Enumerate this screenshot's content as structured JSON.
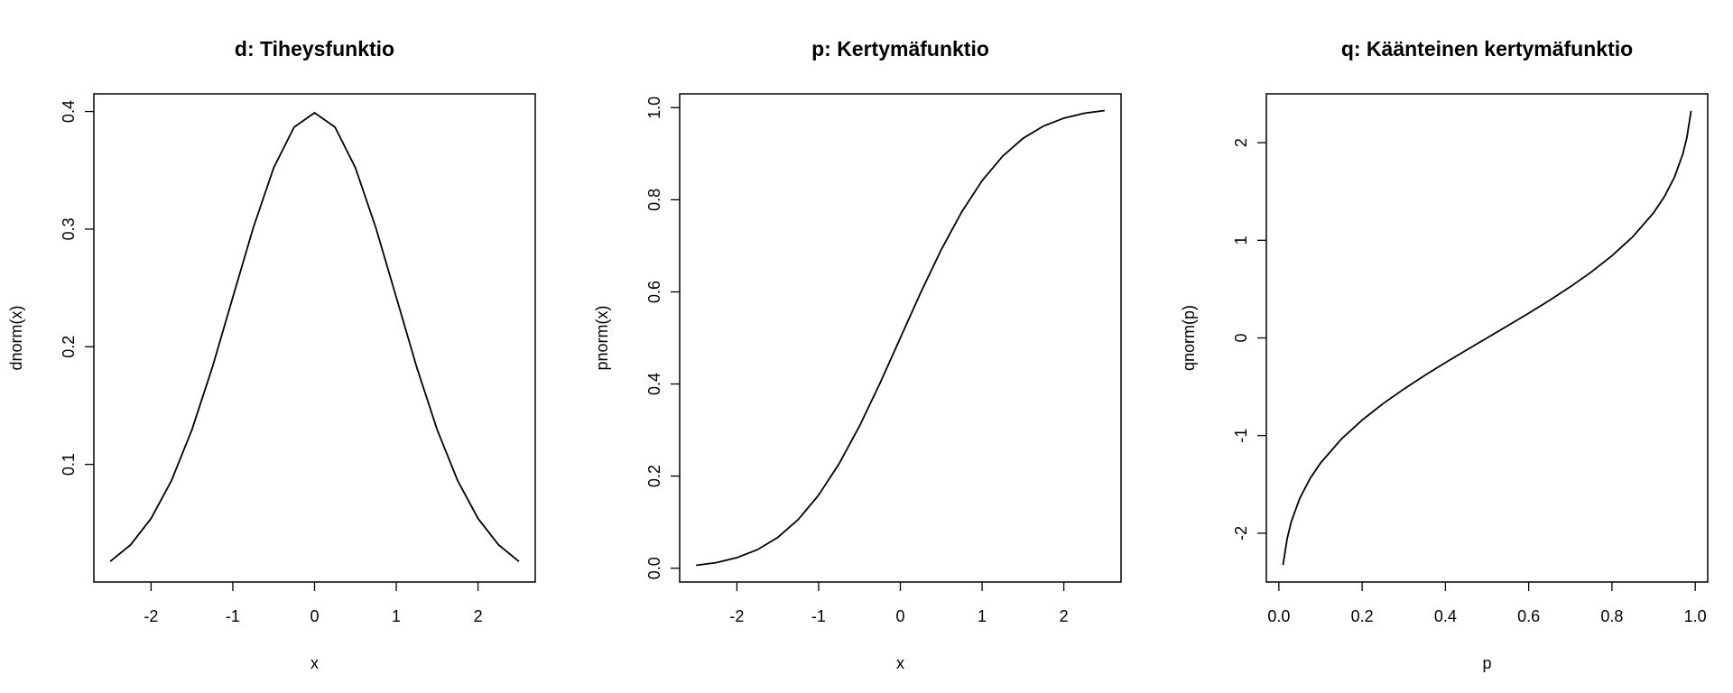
{
  "chart_data": [
    {
      "type": "line",
      "title": "d: Tiheysfunktio",
      "xlabel": "x",
      "ylabel": "dnorm(x)",
      "xlim": [
        -2.7,
        2.7
      ],
      "ylim": [
        0.0,
        0.415
      ],
      "xticks": [
        -2,
        -1,
        0,
        1,
        2
      ],
      "xtick_labels": [
        "-2",
        "-1",
        "0",
        "1",
        "2"
      ],
      "yticks": [
        0.1,
        0.2,
        0.3,
        0.4
      ],
      "ytick_labels": [
        "0.1",
        "0.2",
        "0.3",
        "0.4"
      ],
      "grid": false,
      "series": [
        {
          "x": [
            -2.5,
            -2.25,
            -2.0,
            -1.75,
            -1.5,
            -1.25,
            -1.0,
            -0.75,
            -0.5,
            -0.25,
            0.0,
            0.25,
            0.5,
            0.75,
            1.0,
            1.25,
            1.5,
            1.75,
            2.0,
            2.25,
            2.5
          ],
          "y": [
            0.0175,
            0.0317,
            0.054,
            0.0863,
            0.1295,
            0.1826,
            0.242,
            0.3011,
            0.3521,
            0.3867,
            0.3989,
            0.3867,
            0.3521,
            0.3011,
            0.242,
            0.1826,
            0.1295,
            0.0863,
            0.054,
            0.0317,
            0.0175
          ]
        }
      ]
    },
    {
      "type": "line",
      "title": "p: Kertymäfunktio",
      "xlabel": "x",
      "ylabel": "pnorm(x)",
      "xlim": [
        -2.7,
        2.7
      ],
      "ylim": [
        -0.03,
        1.03
      ],
      "xticks": [
        -2,
        -1,
        0,
        1,
        2
      ],
      "xtick_labels": [
        "-2",
        "-1",
        "0",
        "1",
        "2"
      ],
      "yticks": [
        0.0,
        0.2,
        0.4,
        0.6,
        0.8,
        1.0
      ],
      "ytick_labels": [
        "0.0",
        "0.2",
        "0.4",
        "0.6",
        "0.8",
        "1.0"
      ],
      "grid": false,
      "series": [
        {
          "x": [
            -2.5,
            -2.25,
            -2.0,
            -1.75,
            -1.5,
            -1.25,
            -1.0,
            -0.75,
            -0.5,
            -0.25,
            0.0,
            0.25,
            0.5,
            0.75,
            1.0,
            1.25,
            1.5,
            1.75,
            2.0,
            2.25,
            2.5
          ],
          "y": [
            0.0062,
            0.0122,
            0.0228,
            0.0401,
            0.0668,
            0.1056,
            0.1587,
            0.2266,
            0.3085,
            0.4013,
            0.5,
            0.5987,
            0.6915,
            0.7734,
            0.8413,
            0.8944,
            0.9332,
            0.9599,
            0.9772,
            0.9878,
            0.9938
          ]
        }
      ]
    },
    {
      "type": "line",
      "title": "q: Käänteinen kertymäfunktio",
      "xlabel": "p",
      "ylabel": "qnorm(p)",
      "xlim": [
        -0.03,
        1.03
      ],
      "ylim": [
        -2.5,
        2.5
      ],
      "xticks": [
        0.0,
        0.2,
        0.4,
        0.6,
        0.8,
        1.0
      ],
      "xtick_labels": [
        "0.0",
        "0.2",
        "0.4",
        "0.6",
        "0.8",
        "1.0"
      ],
      "yticks": [
        -2,
        -1,
        0,
        1,
        2
      ],
      "ytick_labels": [
        "-2",
        "-1",
        "0",
        "1",
        "2"
      ],
      "grid": false,
      "series": [
        {
          "x": [
            0.01,
            0.02,
            0.03,
            0.05,
            0.075,
            0.1,
            0.15,
            0.2,
            0.25,
            0.3,
            0.35,
            0.4,
            0.45,
            0.5,
            0.55,
            0.6,
            0.65,
            0.7,
            0.75,
            0.8,
            0.85,
            0.9,
            0.925,
            0.95,
            0.97,
            0.98,
            0.99
          ],
          "y": [
            -2.326,
            -2.054,
            -1.881,
            -1.645,
            -1.44,
            -1.282,
            -1.036,
            -0.842,
            -0.674,
            -0.524,
            -0.385,
            -0.253,
            -0.126,
            0.0,
            0.126,
            0.253,
            0.385,
            0.524,
            0.674,
            0.842,
            1.036,
            1.282,
            1.44,
            1.645,
            1.881,
            2.054,
            2.326
          ]
        }
      ]
    }
  ]
}
